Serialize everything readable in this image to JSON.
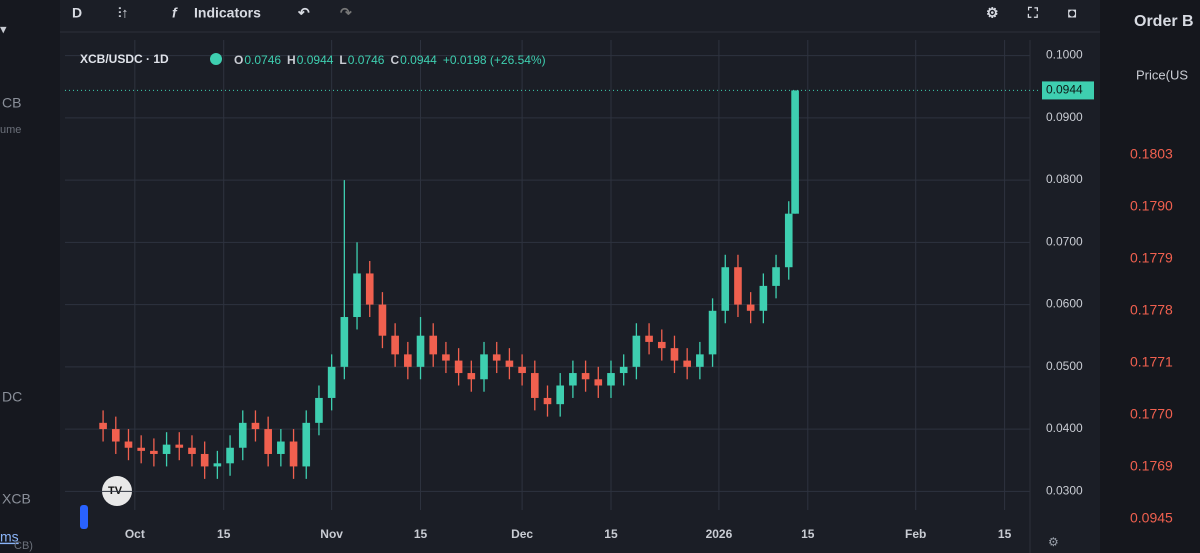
{
  "ui": {
    "toolbar": {
      "interval": "D",
      "indicators": "Indicators"
    },
    "left_panel": [
      "CB",
      "ume",
      "DC",
      "XCB",
      "ms",
      "CB)"
    ],
    "order_book": {
      "title": "Order B",
      "column": "Price(US",
      "prices": [
        "0.1803",
        "0.1790",
        "0.1779",
        "0.1778",
        "0.1771",
        "0.1770",
        "0.1769",
        "0.0945"
      ]
    }
  },
  "chart_data": {
    "type": "candlestick",
    "title": "XCB/USDC · 1D",
    "legend_labels": [
      "O",
      "H",
      "L",
      "C"
    ],
    "change": "+0.0198 (+26.54%)",
    "up_color": "#3ecfb0",
    "down_color": "#f0604f",
    "grid": true,
    "x": [
      "2025-09-26",
      "2025-09-28",
      "2025-09-30",
      "2025-10-02",
      "2025-10-04",
      "2025-10-06",
      "2025-10-08",
      "2025-10-10",
      "2025-10-12",
      "2025-10-14",
      "2025-10-16",
      "2025-10-18",
      "2025-10-20",
      "2025-10-22",
      "2025-10-24",
      "2025-10-26",
      "2025-10-28",
      "2025-10-30",
      "2025-11-01",
      "2025-11-03",
      "2025-11-05",
      "2025-11-07",
      "2025-11-09",
      "2025-11-11",
      "2025-11-13",
      "2025-11-15",
      "2025-11-17",
      "2025-11-19",
      "2025-11-21",
      "2025-11-23",
      "2025-11-25",
      "2025-11-27",
      "2025-11-29",
      "2025-12-01",
      "2025-12-03",
      "2025-12-05",
      "2025-12-07",
      "2025-12-09",
      "2025-12-11",
      "2025-12-13",
      "2025-12-15",
      "2025-12-17",
      "2025-12-19",
      "2025-12-21",
      "2025-12-23",
      "2025-12-25",
      "2025-12-27",
      "2025-12-29",
      "2025-12-31",
      "2026-01-02",
      "2026-01-04",
      "2026-01-06",
      "2026-01-08",
      "2026-01-10",
      "2026-01-12",
      "2026-01-13"
    ],
    "open": [
      0.041,
      0.04,
      0.038,
      0.037,
      0.0365,
      0.036,
      0.0375,
      0.037,
      0.036,
      0.034,
      0.0345,
      0.037,
      0.041,
      0.04,
      0.036,
      0.038,
      0.034,
      0.041,
      0.045,
      0.05,
      0.058,
      0.065,
      0.06,
      0.055,
      0.052,
      0.05,
      0.055,
      0.052,
      0.051,
      0.049,
      0.048,
      0.052,
      0.051,
      0.05,
      0.049,
      0.045,
      0.044,
      0.047,
      0.049,
      0.048,
      0.047,
      0.049,
      0.05,
      0.055,
      0.054,
      0.053,
      0.051,
      0.05,
      0.052,
      0.059,
      0.066,
      0.06,
      0.059,
      0.063,
      0.066,
      0.0746
    ],
    "high": [
      0.043,
      0.042,
      0.04,
      0.039,
      0.0385,
      0.0395,
      0.0395,
      0.039,
      0.038,
      0.0365,
      0.039,
      0.043,
      0.043,
      0.042,
      0.04,
      0.04,
      0.043,
      0.047,
      0.052,
      0.08,
      0.07,
      0.067,
      0.062,
      0.057,
      0.054,
      0.058,
      0.057,
      0.054,
      0.053,
      0.051,
      0.054,
      0.054,
      0.053,
      0.052,
      0.051,
      0.047,
      0.049,
      0.051,
      0.051,
      0.05,
      0.051,
      0.052,
      0.057,
      0.057,
      0.056,
      0.055,
      0.053,
      0.054,
      0.061,
      0.068,
      0.068,
      0.062,
      0.065,
      0.068,
      0.0766,
      0.0944
    ],
    "low": [
      0.038,
      0.036,
      0.035,
      0.0345,
      0.034,
      0.034,
      0.035,
      0.034,
      0.032,
      0.032,
      0.0325,
      0.035,
      0.038,
      0.034,
      0.034,
      0.032,
      0.032,
      0.039,
      0.043,
      0.048,
      0.056,
      0.058,
      0.053,
      0.05,
      0.048,
      0.048,
      0.05,
      0.049,
      0.047,
      0.046,
      0.046,
      0.049,
      0.048,
      0.047,
      0.043,
      0.042,
      0.042,
      0.045,
      0.046,
      0.045,
      0.045,
      0.047,
      0.048,
      0.052,
      0.051,
      0.049,
      0.048,
      0.048,
      0.05,
      0.057,
      0.058,
      0.057,
      0.057,
      0.061,
      0.064,
      0.0746
    ],
    "close": [
      0.04,
      0.038,
      0.037,
      0.0365,
      0.036,
      0.0375,
      0.037,
      0.036,
      0.034,
      0.0345,
      0.037,
      0.041,
      0.04,
      0.036,
      0.038,
      0.034,
      0.041,
      0.045,
      0.05,
      0.058,
      0.065,
      0.06,
      0.055,
      0.052,
      0.05,
      0.055,
      0.052,
      0.051,
      0.049,
      0.048,
      0.052,
      0.051,
      0.05,
      0.049,
      0.045,
      0.044,
      0.047,
      0.049,
      0.048,
      0.047,
      0.049,
      0.05,
      0.055,
      0.054,
      0.053,
      0.051,
      0.05,
      0.052,
      0.059,
      0.066,
      0.06,
      0.059,
      0.063,
      0.066,
      0.0746,
      0.0944
    ],
    "xlim": [
      "2025-09-20",
      "2026-02-19"
    ],
    "xticks": [
      {
        "value": "2025-10-01",
        "label": "Oct"
      },
      {
        "value": "2025-10-15",
        "label": "15"
      },
      {
        "value": "2025-11-01",
        "label": "Nov"
      },
      {
        "value": "2025-11-15",
        "label": "15"
      },
      {
        "value": "2025-12-01",
        "label": "Dec"
      },
      {
        "value": "2025-12-15",
        "label": "15"
      },
      {
        "value": "2026-01-01",
        "label": "2026"
      },
      {
        "value": "2026-01-15",
        "label": "15"
      },
      {
        "value": "2026-02-01",
        "label": "Feb"
      },
      {
        "value": "2026-02-15",
        "label": "15"
      }
    ],
    "ylim": [
      0.027,
      0.1025
    ],
    "yticks": [
      {
        "value": 0.03,
        "label": "0.0300"
      },
      {
        "value": 0.04,
        "label": "0.0400"
      },
      {
        "value": 0.05,
        "label": "0.0500"
      },
      {
        "value": 0.06,
        "label": "0.0600"
      },
      {
        "value": 0.07,
        "label": "0.0700"
      },
      {
        "value": 0.08,
        "label": "0.0800"
      },
      {
        "value": 0.09,
        "label": "0.0900"
      },
      {
        "value": 0.1,
        "label": "0.1000"
      }
    ]
  }
}
